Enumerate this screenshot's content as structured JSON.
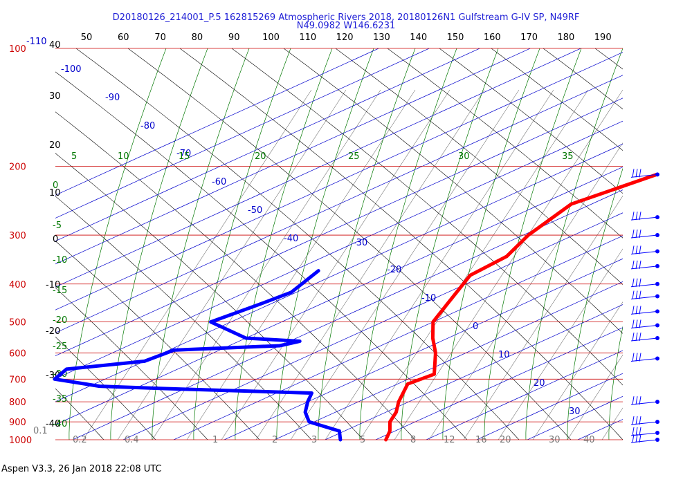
{
  "title_line1": "D20180126_214001_P.5 162815269 Atmospheric Rivers 2018, 20180126N1 Gulfstream G-IV SP, N49RF",
  "title_line2": "N49.0982 W146.6231",
  "footer": "Aspen V3.3, 26 Jan 2018  22:08 UTC",
  "colors": {
    "temperature": "#ff0000",
    "dewpoint": "#0000ff",
    "isobar": "#cc0000",
    "isotherm": "#0000cc",
    "dry_adiabat": "#000000",
    "moist_adiabat": "#007700",
    "mixing_ratio": "#777777",
    "title": "#1f1fd6"
  },
  "chart_data": {
    "type": "skew-t",
    "pressure_levels_hpa": [
      "100",
      "200",
      "300",
      "400",
      "500",
      "600",
      "700",
      "800",
      "900",
      "1000"
    ],
    "top_f_scale": [
      "50",
      "60",
      "70",
      "80",
      "90",
      "100",
      "110",
      "120",
      "130",
      "140",
      "150",
      "160",
      "170",
      "180",
      "190"
    ],
    "top_left_f": "-110",
    "left_c_scale": [
      "40",
      "30",
      "20",
      "10",
      "0",
      "-10",
      "-20",
      "-30",
      "-40"
    ],
    "isotherm_labels": [
      "-100",
      "-90",
      "-80",
      "-70",
      "-60",
      "-50",
      "-40",
      "-30",
      "-20",
      "-10",
      "0",
      "10",
      "20",
      "30"
    ],
    "moist_adiabat_labels": [
      "5",
      "10",
      "15",
      "20",
      "25",
      "30",
      "35"
    ],
    "moist_left_labels": [
      "0",
      "-5",
      "-10",
      "-15",
      "-20",
      "-25",
      "-30",
      "-35",
      "-40"
    ],
    "mixing_ratio_labels": [
      "0.1",
      "0.2",
      "0.4",
      "1",
      "2",
      "3",
      "5",
      "8",
      "12",
      "16",
      "20",
      "30",
      "40"
    ],
    "temperature_profile": [
      {
        "p": 210,
        "t": -50
      },
      {
        "p": 250,
        "t": -54
      },
      {
        "p": 300,
        "t": -49
      },
      {
        "p": 340,
        "t": -44
      },
      {
        "p": 380,
        "t": -43
      },
      {
        "p": 450,
        "t": -35
      },
      {
        "p": 500,
        "t": -30
      },
      {
        "p": 550,
        "t": -23
      },
      {
        "p": 600,
        "t": -16
      },
      {
        "p": 680,
        "t": -7
      },
      {
        "p": 720,
        "t": -8
      },
      {
        "p": 800,
        "t": -2
      },
      {
        "p": 850,
        "t": 2
      },
      {
        "p": 900,
        "t": 5
      },
      {
        "p": 950,
        "t": 9
      },
      {
        "p": 1000,
        "t": 12
      }
    ],
    "dewpoint_profile": [
      {
        "p": 370,
        "t": -75
      },
      {
        "p": 420,
        "t": -71
      },
      {
        "p": 450,
        "t": -72
      },
      {
        "p": 500,
        "t": -74
      },
      {
        "p": 550,
        "t": -60
      },
      {
        "p": 560,
        "t": -48
      },
      {
        "p": 575,
        "t": -50
      },
      {
        "p": 590,
        "t": -69
      },
      {
        "p": 630,
        "t": -70
      },
      {
        "p": 660,
        "t": -82
      },
      {
        "p": 700,
        "t": -80
      },
      {
        "p": 730,
        "t": -68
      },
      {
        "p": 740,
        "t": -54
      },
      {
        "p": 760,
        "t": -23
      },
      {
        "p": 800,
        "t": -20
      },
      {
        "p": 850,
        "t": -16
      },
      {
        "p": 900,
        "t": -11
      },
      {
        "p": 950,
        "t": -1
      },
      {
        "p": 1000,
        "t": 3
      }
    ],
    "wind_barbs_pressure": [
      210,
      270,
      300,
      330,
      360,
      400,
      430,
      470,
      510,
      550,
      620,
      800,
      900,
      960,
      1000
    ]
  }
}
